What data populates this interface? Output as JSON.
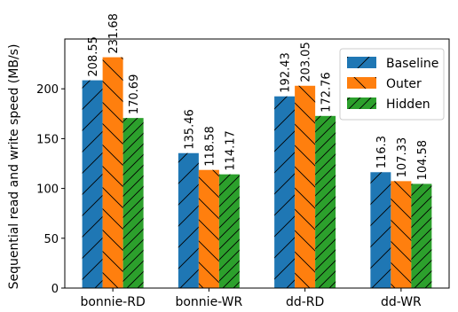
{
  "chart_data": {
    "type": "bar",
    "title": "",
    "xlabel": "",
    "ylabel": "Sequential read and write speed (MB/s)",
    "categories": [
      "bonnie-RD",
      "bonnie-WR",
      "dd-RD",
      "dd-WR"
    ],
    "ylim": [
      0,
      250
    ],
    "yticks": [
      0,
      50,
      100,
      150,
      200
    ],
    "grid": false,
    "legend_position": "top-right",
    "series": [
      {
        "name": "Baseline",
        "values": [
          208.55,
          135.46,
          192.43,
          116.3
        ],
        "labels": [
          "208.55",
          "135.46",
          "192.43",
          "116.3"
        ],
        "color": "#1f77b4",
        "hatch": "/"
      },
      {
        "name": "Outer",
        "values": [
          231.68,
          118.58,
          203.05,
          107.33
        ],
        "labels": [
          "231.68",
          "118.58",
          "203.05",
          "107.33"
        ],
        "color": "#ff7f0e",
        "hatch": "\\"
      },
      {
        "name": "Hidden",
        "values": [
          170.69,
          114.17,
          172.76,
          104.58
        ],
        "labels": [
          "170.69",
          "114.17",
          "172.76",
          "104.58"
        ],
        "color": "#2ca02c",
        "hatch": "//"
      }
    ]
  }
}
